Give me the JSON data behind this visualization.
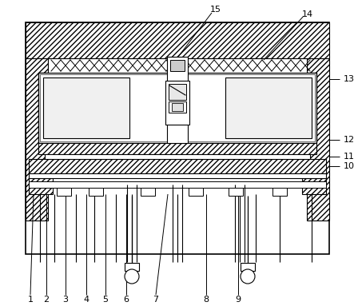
{
  "bg": "#ffffff",
  "lc": "#000000",
  "hatch_fc": "#ffffff",
  "label_fs": 8,
  "chevron_fc": "#ffffff",
  "cavity_fc": "#f0f0f0"
}
